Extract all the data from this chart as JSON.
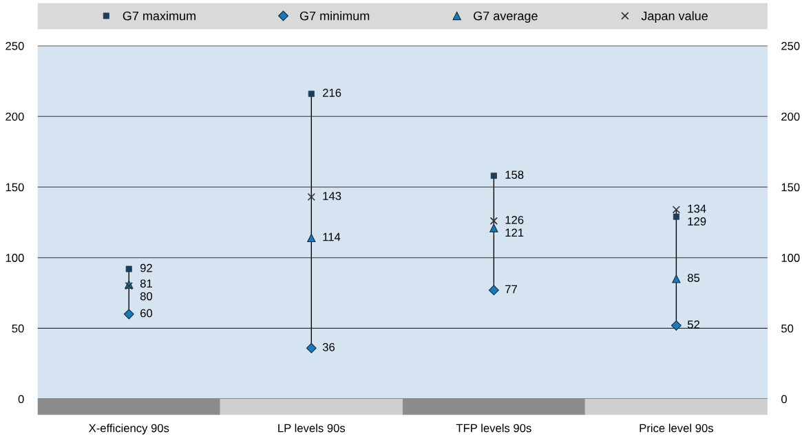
{
  "chart_data": {
    "type": "scatter",
    "categories": [
      "X-efficiency 90s",
      "LP levels 90s",
      "TFP levels 90s",
      "Price level 90s"
    ],
    "series": [
      {
        "name": "G7 maximum",
        "color": "#1b3d57",
        "marker": "square",
        "values": [
          92,
          216,
          158,
          129
        ]
      },
      {
        "name": "G7 minimum",
        "color": "#1a7ab8",
        "marker": "diamond",
        "values": [
          60,
          36,
          77,
          52
        ]
      },
      {
        "name": "G7 average",
        "color": "#1a7ab8",
        "marker": "triangle",
        "values": [
          81,
          114,
          121,
          85
        ]
      },
      {
        "name": "Japan value",
        "color": "#333333",
        "marker": "cross",
        "values": [
          80,
          143,
          126,
          134
        ]
      }
    ],
    "ylim": [
      0,
      250
    ],
    "yticks": [
      0,
      50,
      100,
      150,
      200,
      250
    ],
    "y2lim": [
      0,
      250
    ],
    "y2ticks": [
      0,
      50,
      100,
      150,
      200,
      250
    ],
    "grid": "y",
    "legend": "top",
    "data_labels": true
  }
}
